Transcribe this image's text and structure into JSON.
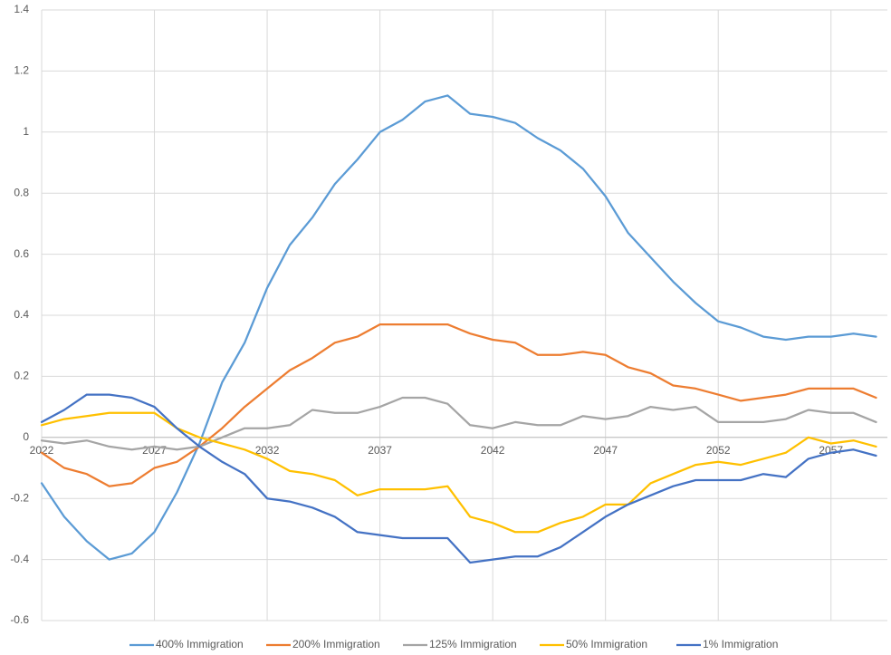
{
  "chart_data": {
    "type": "line",
    "x": [
      2022,
      2023,
      2024,
      2025,
      2026,
      2027,
      2028,
      2029,
      2030,
      2031,
      2032,
      2033,
      2034,
      2035,
      2036,
      2037,
      2038,
      2039,
      2040,
      2041,
      2042,
      2043,
      2044,
      2045,
      2046,
      2047,
      2048,
      2049,
      2050,
      2051,
      2052,
      2053,
      2054,
      2055,
      2056,
      2057,
      2058,
      2059
    ],
    "xlim": [
      2022,
      2059.5
    ],
    "xticks": [
      2022,
      2027,
      2032,
      2037,
      2042,
      2047,
      2052,
      2057
    ],
    "ylim": [
      -0.6,
      1.4
    ],
    "yticks": [
      -0.6,
      -0.4,
      -0.2,
      0,
      0.2,
      0.4,
      0.6,
      0.8,
      1,
      1.2,
      1.4
    ],
    "grid": true,
    "legend": "bottom",
    "series": [
      {
        "name": "400% Immigration",
        "color": "#5b9bd5",
        "values": [
          -0.15,
          -0.26,
          -0.34,
          -0.4,
          -0.38,
          -0.31,
          -0.18,
          -0.02,
          0.18,
          0.31,
          0.49,
          0.63,
          0.72,
          0.83,
          0.91,
          1.0,
          1.04,
          1.1,
          1.12,
          1.06,
          1.05,
          1.03,
          0.98,
          0.94,
          0.88,
          0.79,
          0.67,
          0.59,
          0.51,
          0.44,
          0.38,
          0.36,
          0.33,
          0.32,
          0.33,
          0.33,
          0.34,
          0.33
        ]
      },
      {
        "name": "200% Immigration",
        "color": "#ed7d31",
        "values": [
          -0.05,
          -0.1,
          -0.12,
          -0.16,
          -0.15,
          -0.1,
          -0.08,
          -0.03,
          0.03,
          0.1,
          0.16,
          0.22,
          0.26,
          0.31,
          0.33,
          0.37,
          0.37,
          0.37,
          0.37,
          0.34,
          0.32,
          0.31,
          0.27,
          0.27,
          0.28,
          0.27,
          0.23,
          0.21,
          0.17,
          0.16,
          0.14,
          0.12,
          0.13,
          0.14,
          0.16,
          0.16,
          0.16,
          0.13
        ]
      },
      {
        "name": "125% Immigration",
        "color": "#a5a5a5",
        "values": [
          -0.01,
          -0.02,
          -0.01,
          -0.03,
          -0.04,
          -0.03,
          -0.04,
          -0.03,
          0.0,
          0.03,
          0.03,
          0.04,
          0.09,
          0.08,
          0.08,
          0.1,
          0.13,
          0.13,
          0.11,
          0.04,
          0.03,
          0.05,
          0.04,
          0.04,
          0.07,
          0.06,
          0.07,
          0.1,
          0.09,
          0.1,
          0.05,
          0.05,
          0.05,
          0.06,
          0.09,
          0.08,
          0.08,
          0.05
        ]
      },
      {
        "name": "50% Immigration",
        "color": "#ffc000",
        "values": [
          0.04,
          0.06,
          0.07,
          0.08,
          0.08,
          0.08,
          0.03,
          0.0,
          -0.02,
          -0.04,
          -0.07,
          -0.11,
          -0.12,
          -0.14,
          -0.19,
          -0.17,
          -0.17,
          -0.17,
          -0.16,
          -0.26,
          -0.28,
          -0.31,
          -0.31,
          -0.28,
          -0.26,
          -0.22,
          -0.22,
          -0.15,
          -0.12,
          -0.09,
          -0.08,
          -0.09,
          -0.07,
          -0.05,
          0.0,
          -0.02,
          -0.01,
          -0.03
        ]
      },
      {
        "name": "1% Immigration",
        "color": "#4472c4",
        "values": [
          0.05,
          0.09,
          0.14,
          0.14,
          0.13,
          0.1,
          0.03,
          -0.03,
          -0.08,
          -0.12,
          -0.2,
          -0.21,
          -0.23,
          -0.26,
          -0.31,
          -0.32,
          -0.33,
          -0.33,
          -0.33,
          -0.41,
          -0.4,
          -0.39,
          -0.39,
          -0.36,
          -0.31,
          -0.26,
          -0.22,
          -0.19,
          -0.16,
          -0.14,
          -0.14,
          -0.14,
          -0.12,
          -0.13,
          -0.07,
          -0.05,
          -0.04,
          -0.06
        ]
      }
    ]
  }
}
